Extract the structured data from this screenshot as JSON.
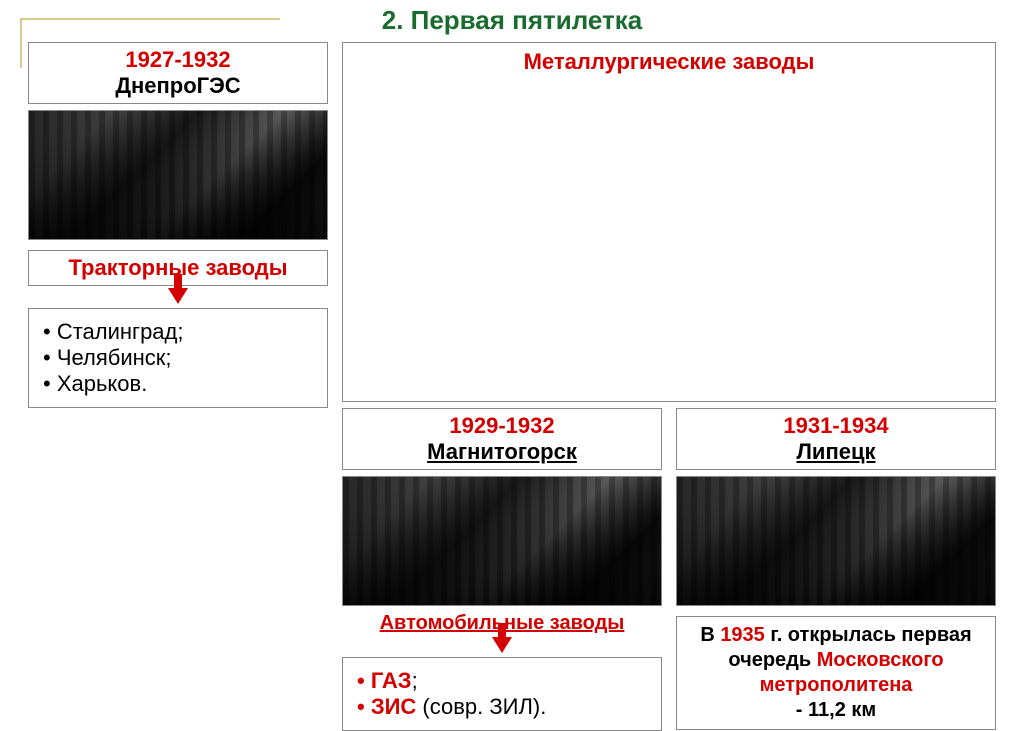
{
  "title": "2. Первая пятилетка",
  "colors": {
    "title": "#1a6b2e",
    "accent": "#d40000",
    "border": "#888888",
    "frame": "#d9c98a",
    "bg": "#ffffff",
    "text": "#000000"
  },
  "col1": {
    "years": "1927-1932",
    "name": "ДнепроГЭС",
    "subheader": "Тракторные заводы",
    "items": [
      "• Сталинград;",
      "• Челябинск;",
      "• Харьков."
    ]
  },
  "metHeader": "Металлургические заводы",
  "col2": {
    "years": "1929-1932",
    "name": "Магнитогорск",
    "subheader": "Автомобильные заводы",
    "item1_red": "• ГАЗ",
    "item1_tail": ";",
    "item2_red": "• ЗИС",
    "item2_tail": " (совр. ЗИЛ)."
  },
  "col3": {
    "years": "1931-1934",
    "name": "Липецк",
    "metro_p1": "В ",
    "metro_year": "1935",
    "metro_p2": " г. открылась первая очередь ",
    "metro_red": "Московского метрополитена",
    "metro_p3": " - 11,2 км"
  }
}
